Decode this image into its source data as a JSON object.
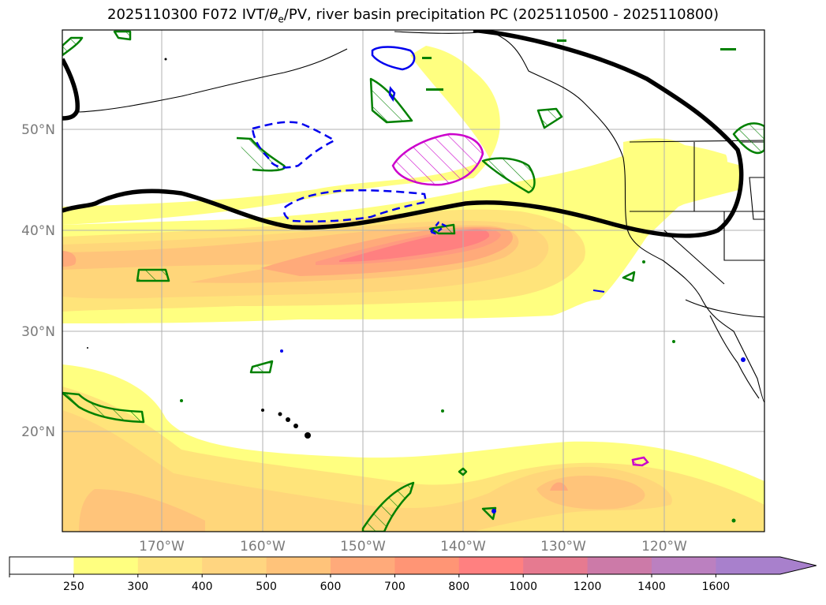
{
  "title": {
    "prefix": "2025110300 F072 IVT/",
    "theta": "θ",
    "theta_sub": "e",
    "suffix": "/PV, river basin precipitation PC (2025110500 - 2025110800)"
  },
  "map": {
    "lat_labels": [
      "50°N",
      "40°N",
      "30°N",
      "20°N"
    ],
    "lon_labels": [
      "170°W",
      "160°W",
      "150°W",
      "140°W",
      "130°W",
      "120°W"
    ],
    "ivt_colors": {
      "250": "#ffff80",
      "300": "#ffe47a",
      "400": "#ffd67a",
      "500": "#ffc47a",
      "600": "#ffaa7a",
      "700": "#ff9a80",
      "800": "#ff8080"
    },
    "contour_colors": {
      "pv": "#000000",
      "green": "#008000",
      "blue": "#0000ee",
      "magenta": "#cc00cc"
    }
  },
  "colorbar": {
    "ticks": [
      "250",
      "300",
      "400",
      "500",
      "600",
      "700",
      "800",
      "1000",
      "1200",
      "1400",
      "1600"
    ],
    "colors": [
      "#ffffff",
      "#ffff80",
      "#ffe680",
      "#ffd580",
      "#ffc37a",
      "#ffaa7a",
      "#ff9575",
      "#ff8080",
      "#e67a90",
      "#cc7aa8",
      "#bb80c0",
      "#a880cc"
    ]
  }
}
